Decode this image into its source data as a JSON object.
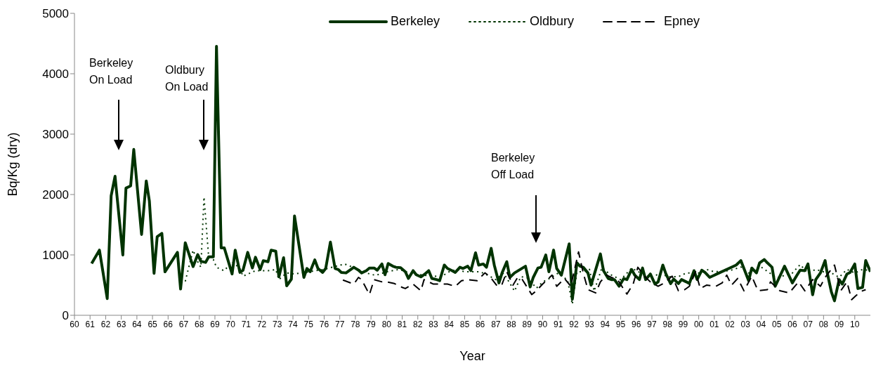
{
  "chart_data": {
    "type": "line",
    "xlabel": "Year",
    "ylabel": "Bq/Kg (dry)",
    "xlim": [
      1960,
      2011
    ],
    "ylim": [
      0,
      5000
    ],
    "yticks": [
      0,
      1000,
      2000,
      3000,
      4000,
      5000
    ],
    "xticks": [
      {
        "value": 1960,
        "label": "60"
      },
      {
        "value": 1961,
        "label": "61"
      },
      {
        "value": 1962,
        "label": "62"
      },
      {
        "value": 1963,
        "label": "63"
      },
      {
        "value": 1964,
        "label": "64"
      },
      {
        "value": 1965,
        "label": "65"
      },
      {
        "value": 1966,
        "label": "66"
      },
      {
        "value": 1967,
        "label": "67"
      },
      {
        "value": 1968,
        "label": "68"
      },
      {
        "value": 1969,
        "label": "69"
      },
      {
        "value": 1970,
        "label": "70"
      },
      {
        "value": 1971,
        "label": "71"
      },
      {
        "value": 1972,
        "label": "72"
      },
      {
        "value": 1973,
        "label": "73"
      },
      {
        "value": 1974,
        "label": "74"
      },
      {
        "value": 1975,
        "label": "75"
      },
      {
        "value": 1976,
        "label": "76"
      },
      {
        "value": 1977,
        "label": "77"
      },
      {
        "value": 1978,
        "label": "78"
      },
      {
        "value": 1979,
        "label": "79"
      },
      {
        "value": 1980,
        "label": "80"
      },
      {
        "value": 1981,
        "label": "81"
      },
      {
        "value": 1982,
        "label": "82"
      },
      {
        "value": 1983,
        "label": "83"
      },
      {
        "value": 1984,
        "label": "84"
      },
      {
        "value": 1985,
        "label": "85"
      },
      {
        "value": 1986,
        "label": "86"
      },
      {
        "value": 1987,
        "label": "87"
      },
      {
        "value": 1988,
        "label": "88"
      },
      {
        "value": 1989,
        "label": "89"
      },
      {
        "value": 1990,
        "label": "90"
      },
      {
        "value": 1991,
        "label": "91"
      },
      {
        "value": 1992,
        "label": "92"
      },
      {
        "value": 1993,
        "label": "93"
      },
      {
        "value": 1994,
        "label": "94"
      },
      {
        "value": 1995,
        "label": "95"
      },
      {
        "value": 1996,
        "label": "96"
      },
      {
        "value": 1997,
        "label": "97"
      },
      {
        "value": 1998,
        "label": "98"
      },
      {
        "value": 1999,
        "label": "99"
      },
      {
        "value": 2000,
        "label": "00"
      },
      {
        "value": 2001,
        "label": "01"
      },
      {
        "value": 2002,
        "label": "02"
      },
      {
        "value": 2003,
        "label": "03"
      },
      {
        "value": 2004,
        "label": "04"
      },
      {
        "value": 2005,
        "label": "05"
      },
      {
        "value": 2006,
        "label": "06"
      },
      {
        "value": 2007,
        "label": "07"
      },
      {
        "value": 2008,
        "label": "08"
      },
      {
        "value": 2009,
        "label": "09"
      },
      {
        "value": 2010,
        "label": "10"
      }
    ],
    "legend": "top right",
    "marker": "none",
    "annotations": [
      "Berkeley\nOn Load",
      "Oldbury\nOn Load",
      "Berkeley\nOff Load"
    ],
    "series": [
      {
        "name": "Berkeley",
        "color": "#003300",
        "line_style": "solid",
        "x": [
          1961.1,
          1961.6,
          1962.1,
          1962.35,
          1962.6,
          1963.1,
          1963.3,
          1963.6,
          1963.8,
          1964.3,
          1964.6,
          1964.8,
          1965.1,
          1965.3,
          1965.6,
          1965.8,
          1966.6,
          1966.8,
          1967.1,
          1967.6,
          1967.9,
          1968.1,
          1968.4,
          1968.6,
          1968.9,
          1969.1,
          1969.4,
          1969.6,
          1970.1,
          1970.3,
          1970.6,
          1970.8,
          1971.1,
          1971.4,
          1971.6,
          1971.9,
          1972.1,
          1972.4,
          1972.6,
          1972.9,
          1973.1,
          1973.4,
          1973.6,
          1973.9,
          1974.1,
          1974.7,
          1974.9,
          1975.1,
          1975.4,
          1975.6,
          1975.9,
          1976.1,
          1976.4,
          1976.7,
          1976.9,
          1977.1,
          1977.4,
          1977.7,
          1977.9,
          1978.2,
          1978.4,
          1978.7,
          1978.9,
          1979.2,
          1979.4,
          1979.7,
          1979.9,
          1980.1,
          1980.4,
          1980.6,
          1980.9,
          1981.2,
          1981.4,
          1981.7,
          1981.9,
          1982.2,
          1982.4,
          1982.7,
          1982.9,
          1983.2,
          1983.4,
          1983.7,
          1983.9,
          1984.2,
          1984.4,
          1984.7,
          1984.9,
          1985.2,
          1985.4,
          1985.7,
          1985.9,
          1986.2,
          1986.4,
          1986.7,
          1986.9,
          1987.2,
          1987.4,
          1987.7,
          1987.9,
          1988.2,
          1988.9,
          1989.2,
          1989.4,
          1989.7,
          1989.9,
          1990.2,
          1990.4,
          1990.7,
          1990.9,
          1991.2,
          1991.7,
          1991.9,
          1992.2,
          1992.4,
          1992.6,
          1992.9,
          1993.1,
          1993.7,
          1993.9,
          1994.2,
          1994.4,
          1994.6,
          1994.9,
          1995.2,
          1995.4,
          1995.7,
          1995.9,
          1996.2,
          1996.4,
          1996.6,
          1996.9,
          1997.2,
          1997.4,
          1997.7,
          1997.9,
          1998.2,
          1998.4,
          1998.7,
          1998.9,
          1999.2,
          1999.4,
          1999.7,
          1999.9,
          2000.2,
          2000.4,
          2000.7,
          2002.4,
          2002.7,
          2003.2,
          2003.4,
          2003.7,
          2003.9,
          2004.2,
          2004.4,
          2004.7,
          2004.9,
          2005.5,
          2006.0,
          2006.3,
          2006.5,
          2006.8,
          2007.0,
          2007.3,
          2007.5,
          2007.8,
          2008.1,
          2008.2,
          2008.5,
          2008.7,
          2009.0,
          2009.2,
          2009.5,
          2009.7,
          2010.0,
          2010.2,
          2010.5,
          2010.7,
          2011.0
        ],
        "values": [
          857,
          1079,
          277,
          1977,
          2302,
          998,
          2106,
          2143,
          2746,
          1338,
          2225,
          1892,
          695,
          1301,
          1356,
          720,
          1042,
          436,
          1201,
          806,
          1005,
          894,
          876,
          968,
          968,
          4453,
          1116,
          1116,
          684,
          1079,
          710,
          746,
          1042,
          783,
          961,
          758,
          905,
          887,
          1079,
          1061,
          636,
          953,
          488,
          599,
          1645,
          628,
          776,
          721,
          917,
          776,
          710,
          776,
          1212,
          776,
          758,
          710,
          702,
          758,
          795,
          747,
          702,
          739,
          783,
          783,
          747,
          850,
          672,
          857,
          813,
          795,
          787,
          721,
          610,
          739,
          672,
          636,
          672,
          739,
          610,
          591,
          573,
          832,
          776,
          739,
          710,
          795,
          776,
          813,
          739,
          1035,
          832,
          850,
          795,
          1109,
          832,
          536,
          702,
          887,
          628,
          702,
          813,
          469,
          628,
          783,
          795,
          998,
          721,
          1080,
          776,
          665,
          1183,
          266,
          869,
          813,
          795,
          702,
          499,
          1016,
          739,
          610,
          591,
          591,
          480,
          610,
          591,
          758,
          665,
          591,
          783,
          591,
          684,
          517,
          554,
          832,
          684,
          525,
          599,
          525,
          591,
          554,
          525,
          739,
          591,
          747,
          710,
          628,
          832,
          906,
          573,
          783,
          702,
          869,
          924,
          869,
          795,
          480,
          813,
          536,
          665,
          747,
          739,
          850,
          340,
          591,
          702,
          906,
          747,
          388,
          240,
          591,
          517,
          684,
          710,
          850,
          443,
          462,
          906,
          721
        ]
      },
      {
        "name": "Oldbury",
        "color": "#003300",
        "line_style": "dotted",
        "x": [
          1967.1,
          1967.6,
          1967.9,
          1968.1,
          1968.3,
          1968.6,
          1968.9,
          1969.1,
          1969.4,
          1969.6,
          1970.1,
          1970.6,
          1970.8,
          1971.6,
          1972.4,
          1972.9,
          1973.1,
          1973.6,
          1974.1,
          1975.0,
          1976.0,
          1977.3,
          1978.0,
          1978.7,
          1979.3,
          1980.0,
          1980.8,
          1981.5,
          1982.5,
          1983.5,
          1984.0,
          1984.5,
          1985.0,
          1986.0,
          1986.6,
          1987.0,
          1987.5,
          1988.2,
          1988.6,
          1989.0,
          1989.3,
          1989.6,
          1990.0,
          1990.5,
          1991.0,
          1991.6,
          1991.9,
          1992.2,
          1992.5,
          1993.0,
          1993.3,
          1993.8,
          1994.3,
          1995.0,
          1995.7,
          1996.3,
          1997.0,
          1997.5,
          1998.0,
          1998.7,
          1999.2,
          2000.0,
          2000.5,
          2001.0,
          2002.0,
          2002.7,
          2003.2,
          2004.0,
          2005.0,
          2006.0,
          2006.5,
          2007.0,
          2007.5,
          2008.0,
          2008.5,
          2009.0,
          2009.5,
          2010.0,
          2010.5,
          2011.0
        ],
        "values": [
          562,
          1079,
          887,
          795,
          1959,
          961,
          924,
          795,
          758,
          739,
          887,
          776,
          647,
          739,
          739,
          758,
          591,
          702,
          684,
          720,
          760,
          850,
          780,
          700,
          660,
          720,
          760,
          700,
          660,
          640,
          720,
          760,
          720,
          720,
          650,
          590,
          700,
          400,
          640,
          620,
          540,
          450,
          550,
          620,
          700,
          580,
          180,
          720,
          720,
          760,
          400,
          790,
          680,
          590,
          780,
          700,
          620,
          700,
          640,
          640,
          700,
          700,
          760,
          720,
          740,
          800,
          700,
          800,
          620,
          700,
          840,
          700,
          760,
          720,
          700,
          630,
          760,
          700,
          760,
          740
        ]
      },
      {
        "name": "Epney",
        "color": "#000000",
        "line_style": "dashed",
        "x": [
          1977.2,
          1977.9,
          1978.2,
          1978.4,
          1978.9,
          1979.2,
          1979.7,
          1980.0,
          1980.5,
          1981.0,
          1981.2,
          1981.7,
          1982.2,
          1982.4,
          1983.0,
          1983.4,
          1983.9,
          1984.4,
          1984.8,
          1985.2,
          1985.8,
          1986.3,
          1986.6,
          1987.1,
          1987.4,
          1987.7,
          1988.1,
          1988.4,
          1988.7,
          1989.3,
          1989.6,
          1990.0,
          1990.6,
          1990.9,
          1991.4,
          1991.8,
          1992.3,
          1992.6,
          1992.9,
          1993.4,
          1993.7,
          1994.1,
          1994.4,
          1994.8,
          1995.4,
          1995.8,
          1996.1,
          1996.6,
          1996.9,
          1997.4,
          1997.8,
          1998.3,
          1998.7,
          1999.1,
          1999.4,
          1999.8,
          2000.1,
          2000.5,
          2001.1,
          2001.5,
          2001.8,
          2002.1,
          2002.5,
          2002.9,
          2003.4,
          2003.8,
          2004.4,
          2004.6,
          2005.2,
          2005.8,
          2006.4,
          2006.8,
          2007.3,
          2007.8,
          2008.1,
          2008.7,
          2009.1,
          2009.5,
          2009.8,
          2010.1,
          2010.5,
          2010.7
        ],
        "values": [
          584,
          517,
          628,
          591,
          344,
          591,
          554,
          554,
          525,
          462,
          443,
          517,
          406,
          591,
          517,
          517,
          517,
          480,
          573,
          591,
          573,
          702,
          647,
          480,
          517,
          721,
          499,
          628,
          591,
          344,
          406,
          517,
          665,
          480,
          610,
          480,
          1050,
          702,
          425,
          370,
          554,
          665,
          628,
          591,
          351,
          517,
          795,
          628,
          554,
          480,
          536,
          647,
          406,
          425,
          480,
          721,
          443,
          499,
          480,
          536,
          665,
          499,
          610,
          406,
          647,
          406,
          425,
          554,
          406,
          370,
          554,
          406,
          591,
          480,
          628,
          832,
          406,
          554,
          258,
          332,
          406,
          425
        ]
      }
    ]
  }
}
